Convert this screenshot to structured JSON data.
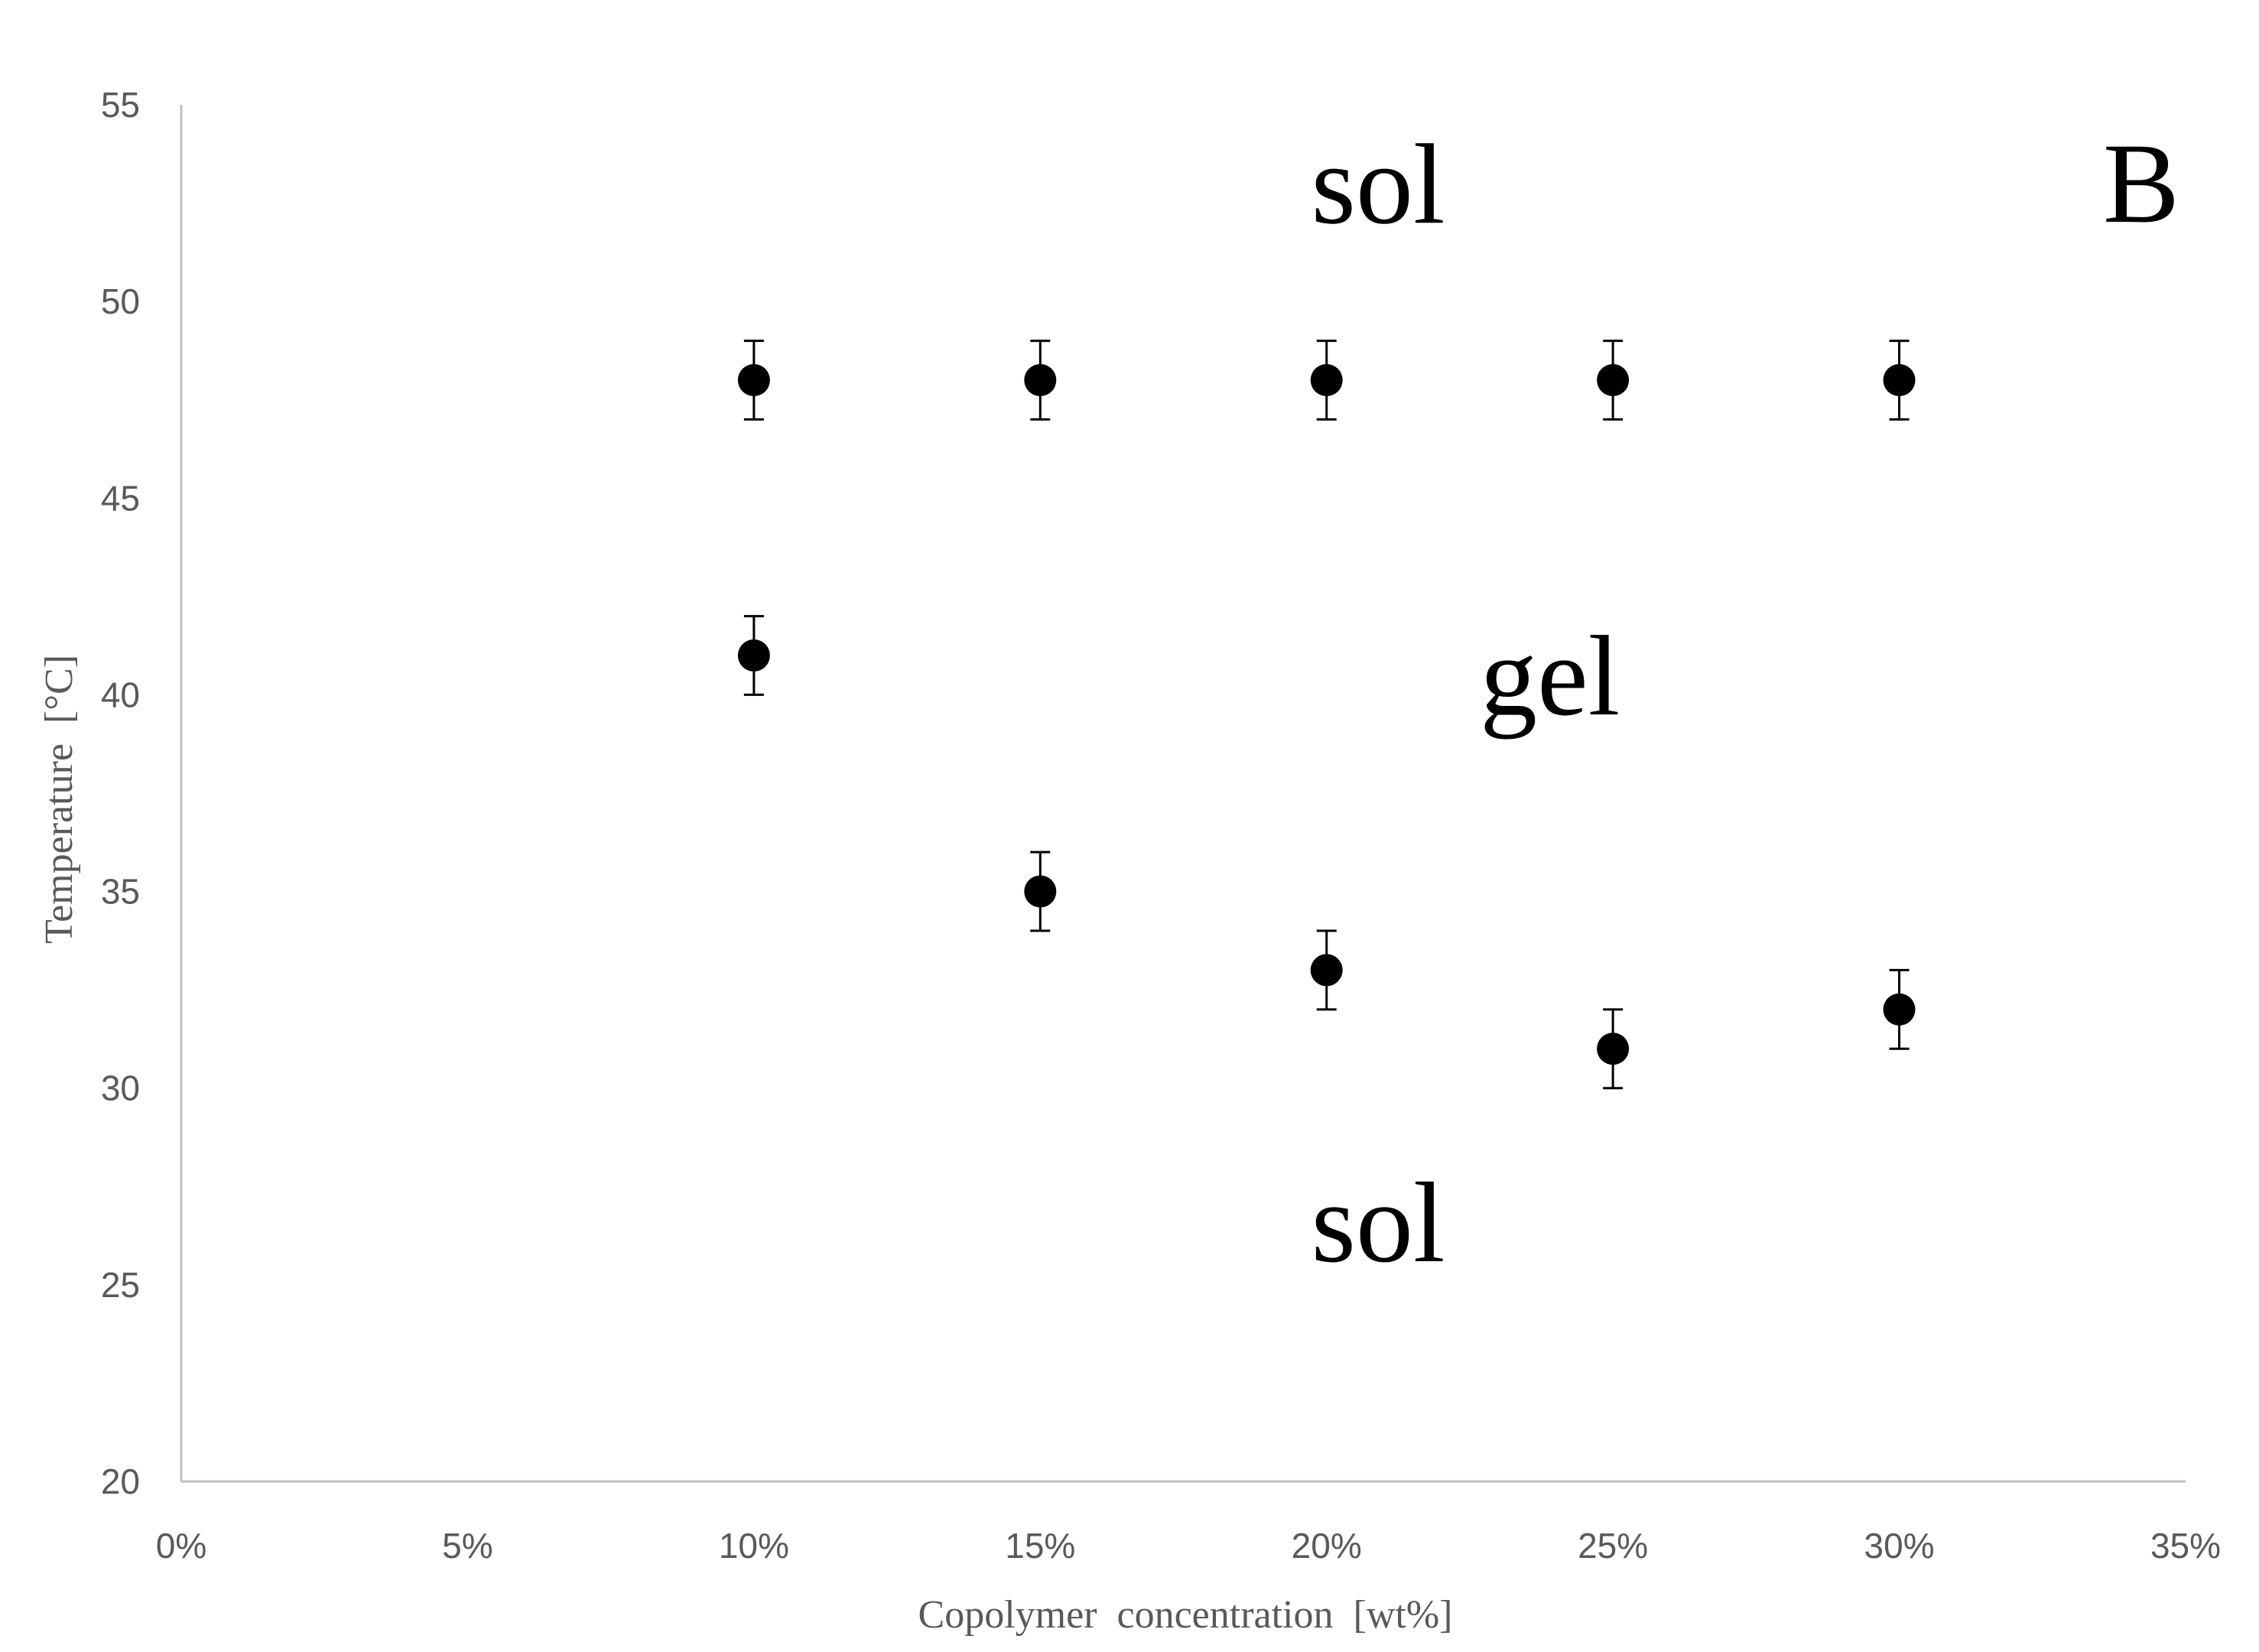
{
  "chart_data": {
    "type": "scatter",
    "panel_label": "B",
    "xlabel": "Copolymer  concentration  [wt%]",
    "ylabel": "Temperature  [°C]",
    "xlim": [
      0,
      35
    ],
    "ylim": [
      20,
      55
    ],
    "x_ticks": [
      0,
      5,
      10,
      15,
      20,
      25,
      30,
      35
    ],
    "x_tick_labels": [
      "0%",
      "5%",
      "10%",
      "15%",
      "20%",
      "25%",
      "30%",
      "35%"
    ],
    "y_ticks": [
      20,
      25,
      30,
      35,
      40,
      45,
      50,
      55
    ],
    "y_tick_labels": [
      "20",
      "25",
      "30",
      "35",
      "40",
      "45",
      "50",
      "55"
    ],
    "grid": false,
    "legend": "none",
    "series": [
      {
        "x": [
          10,
          15,
          20,
          25,
          30
        ],
        "y": [
          48,
          48,
          48,
          48,
          48
        ],
        "error": [
          1,
          1,
          1,
          1,
          1
        ]
      },
      {
        "x": [
          10,
          15,
          20,
          25,
          30
        ],
        "y": [
          41,
          35,
          33,
          31,
          32
        ],
        "error": [
          1,
          1,
          1,
          1,
          1
        ]
      }
    ],
    "annotations": [
      {
        "text": "sol",
        "x": 20.9,
        "y": 52.0
      },
      {
        "text": "gel",
        "x": 23.9,
        "y": 39.5
      },
      {
        "text": "sol",
        "x": 20.9,
        "y": 25.6
      }
    ],
    "colors": {
      "marker": "#000000",
      "axis": "#bfbfbf",
      "tick_label": "#595959",
      "axis_label": "#595959",
      "annotation": "#000000"
    }
  }
}
